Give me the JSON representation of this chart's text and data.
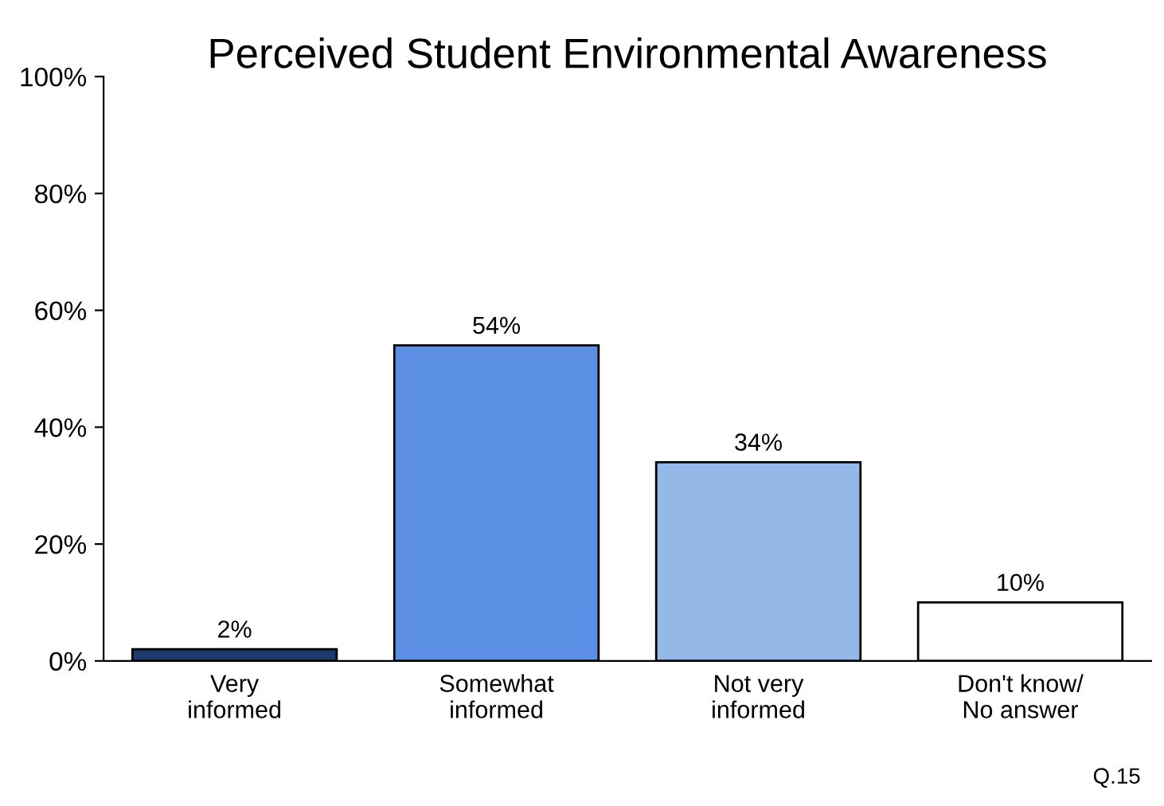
{
  "chart_data": {
    "type": "bar",
    "title": "Perceived Student Environmental Awareness",
    "categories": [
      "Very\ninformed",
      "Somewhat\ninformed",
      "Not very\ninformed",
      "Don't know/\nNo answer"
    ],
    "values": [
      2,
      54,
      34,
      10
    ],
    "colors": [
      "#1f3a6e",
      "#5b8fe3",
      "#94b9e8",
      "#ffffff"
    ],
    "value_labels": [
      "2%",
      "54%",
      "34%",
      "10%"
    ],
    "ylim": [
      0,
      100
    ],
    "yticks": [
      {
        "value": 0,
        "label": "0%"
      },
      {
        "value": 20,
        "label": "20%"
      },
      {
        "value": 40,
        "label": "40%"
      },
      {
        "value": 60,
        "label": "60%"
      },
      {
        "value": 80,
        "label": "80%"
      },
      {
        "value": 100,
        "label": "100%"
      }
    ],
    "grid": false,
    "legend": false,
    "annotations": [
      "Q.15"
    ]
  }
}
